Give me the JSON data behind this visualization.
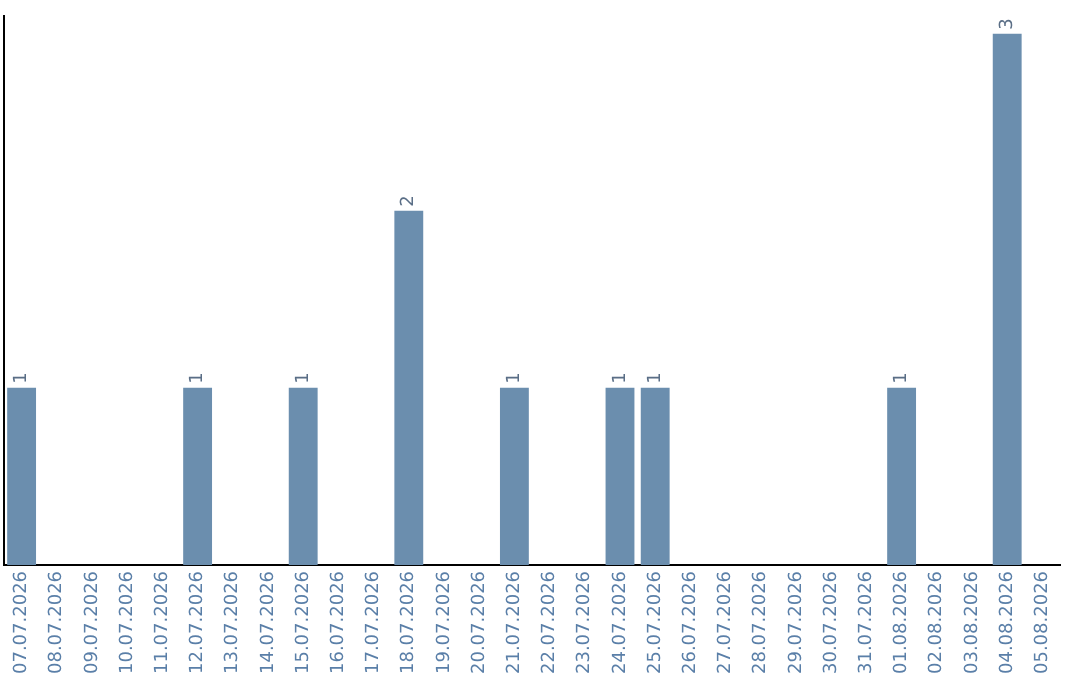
{
  "chart_data": {
    "type": "bar",
    "categories": [
      "07.07.2026",
      "08.07.2026",
      "09.07.2026",
      "10.07.2026",
      "11.07.2026",
      "12.07.2026",
      "13.07.2026",
      "14.07.2026",
      "15.07.2026",
      "16.07.2026",
      "17.07.2026",
      "18.07.2026",
      "19.07.2026",
      "20.07.2026",
      "21.07.2026",
      "22.07.2026",
      "23.07.2026",
      "24.07.2026",
      "25.07.2026",
      "26.07.2026",
      "27.07.2026",
      "28.07.2026",
      "29.07.2026",
      "30.07.2026",
      "31.07.2026",
      "01.08.2026",
      "02.08.2026",
      "03.08.2026",
      "04.08.2026",
      "05.08.2026"
    ],
    "values": [
      1,
      0,
      0,
      0,
      0,
      1,
      0,
      0,
      1,
      0,
      0,
      2,
      0,
      0,
      1,
      0,
      0,
      1,
      1,
      0,
      0,
      0,
      0,
      0,
      0,
      1,
      0,
      0,
      3,
      0
    ],
    "value_labels": [
      "1",
      null,
      null,
      null,
      null,
      "1",
      null,
      null,
      "1",
      null,
      null,
      "2",
      null,
      null,
      "1",
      null,
      null,
      "1",
      "1",
      null,
      null,
      null,
      null,
      null,
      null,
      "1",
      null,
      null,
      "3",
      null
    ],
    "color": "#6b8eae",
    "ylim": [
      0,
      3.1
    ],
    "tick_labels": "x",
    "grid": false,
    "legend": false
  }
}
